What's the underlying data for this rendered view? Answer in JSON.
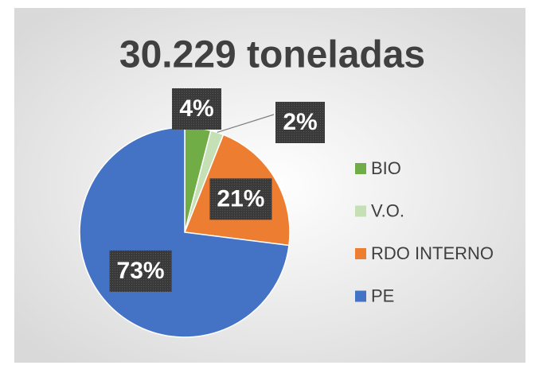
{
  "chart_data": {
    "type": "pie",
    "title": "30.229 toneladas",
    "categories": [
      "BIO",
      "V.O.",
      "RDO INTERNO",
      "PE"
    ],
    "values": [
      4,
      2,
      21,
      73
    ],
    "value_labels": [
      "4%",
      "2%",
      "21%",
      "73%"
    ],
    "colors": [
      "#70ad47",
      "#c5e0b4",
      "#ed7d31",
      "#4472c4"
    ],
    "legend": "right"
  }
}
